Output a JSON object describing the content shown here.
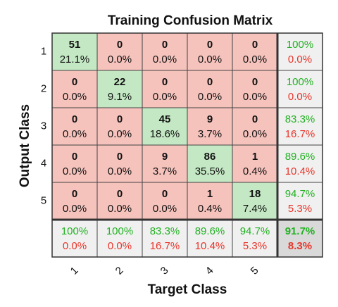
{
  "chart_data": {
    "type": "confusion_matrix",
    "title": "Training Confusion Matrix",
    "xlabel": "Target Class",
    "ylabel": "Output Class",
    "classes": [
      "1",
      "2",
      "3",
      "4",
      "5"
    ],
    "counts": [
      [
        51,
        0,
        0,
        0,
        0
      ],
      [
        0,
        22,
        0,
        0,
        0
      ],
      [
        0,
        0,
        45,
        9,
        0
      ],
      [
        0,
        0,
        9,
        86,
        1
      ],
      [
        0,
        0,
        0,
        1,
        18
      ]
    ],
    "percents": [
      [
        "21.1%",
        "0.0%",
        "0.0%",
        "0.0%",
        "0.0%"
      ],
      [
        "0.0%",
        "9.1%",
        "0.0%",
        "0.0%",
        "0.0%"
      ],
      [
        "0.0%",
        "0.0%",
        "18.6%",
        "3.7%",
        "0.0%"
      ],
      [
        "0.0%",
        "0.0%",
        "3.7%",
        "35.5%",
        "0.4%"
      ],
      [
        "0.0%",
        "0.0%",
        "0.0%",
        "0.4%",
        "7.4%"
      ]
    ],
    "row_summary": [
      [
        "100%",
        "0.0%"
      ],
      [
        "100%",
        "0.0%"
      ],
      [
        "83.3%",
        "16.7%"
      ],
      [
        "89.6%",
        "10.4%"
      ],
      [
        "94.7%",
        "5.3%"
      ]
    ],
    "col_summary": [
      [
        "100%",
        "0.0%"
      ],
      [
        "100%",
        "0.0%"
      ],
      [
        "83.3%",
        "16.7%"
      ],
      [
        "89.6%",
        "10.4%"
      ],
      [
        "94.7%",
        "5.3%"
      ]
    ],
    "overall": [
      "91.7%",
      "8.3%"
    ],
    "colors": {
      "correct_cell": "#c4e8c4",
      "error_cell": "#f5c2bc",
      "summary_cell": "#f0f0f0",
      "overall_cell": "#d9d9d9",
      "correct_text": "#22b122",
      "error_text": "#e8352a"
    }
  }
}
